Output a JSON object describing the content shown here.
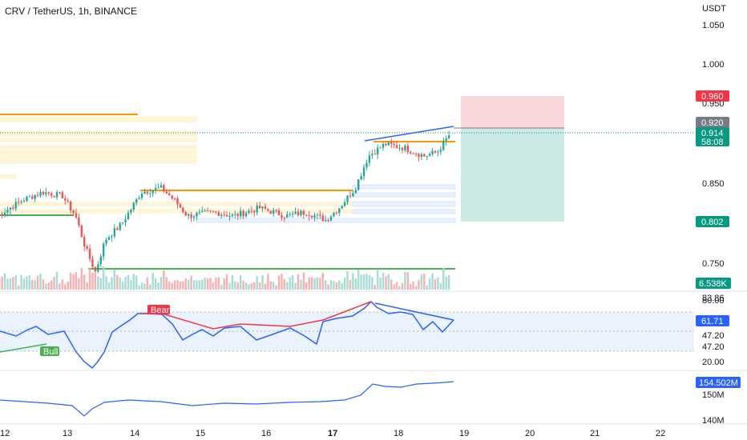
{
  "chart_data": {
    "type": "candlestick",
    "title": "CRV / TetherUS, 1h, BINANCE",
    "unit": "USDT",
    "price_axis_ticks": [
      "1.050",
      "1.000",
      "0.950",
      "0.850",
      "0.750"
    ],
    "x_axis_ticks": [
      "12",
      "13",
      "14",
      "15",
      "16",
      "17",
      "18",
      "19",
      "20",
      "21",
      "22"
    ],
    "bold_x_tick": "17",
    "price_labels": {
      "stop": {
        "value": "0.960",
        "color": "#f23645"
      },
      "entry": {
        "value": "0.920",
        "color": "#787b86"
      },
      "last": {
        "value": "0.914",
        "color": "#089981"
      },
      "countdown": {
        "value": "58:08",
        "color": "#089981"
      },
      "target": {
        "value": "0.802",
        "color": "#089981"
      }
    },
    "volume_label": {
      "value": "6.538K",
      "color": "#089981"
    },
    "rsi": {
      "ticks": [
        "83.86",
        "47.20",
        "47.20",
        "20.00"
      ],
      "value": {
        "value": "61.71",
        "color": "#2962ff"
      },
      "bear_label": "Bear",
      "bull_label": "Bull"
    },
    "obv": {
      "ticks": [
        "150M",
        "140M"
      ],
      "value": {
        "value": "154.502M",
        "color": "#2962ff"
      }
    },
    "approx_close_series": {
      "days_x": [
        11.9,
        12.3,
        12.6,
        12.9,
        13.1,
        13.25,
        13.4,
        13.55,
        13.8,
        14.1,
        14.4,
        14.6,
        14.8,
        15.2,
        15.5,
        15.9,
        16.3,
        16.6,
        16.9,
        17.1,
        17.35,
        17.55,
        17.8,
        18.1,
        18.4,
        18.6,
        18.8
      ],
      "price": [
        0.81,
        0.83,
        0.84,
        0.835,
        0.81,
        0.77,
        0.74,
        0.78,
        0.8,
        0.84,
        0.845,
        0.83,
        0.81,
        0.815,
        0.81,
        0.82,
        0.81,
        0.815,
        0.805,
        0.82,
        0.845,
        0.885,
        0.9,
        0.895,
        0.885,
        0.89,
        0.914
      ]
    }
  }
}
